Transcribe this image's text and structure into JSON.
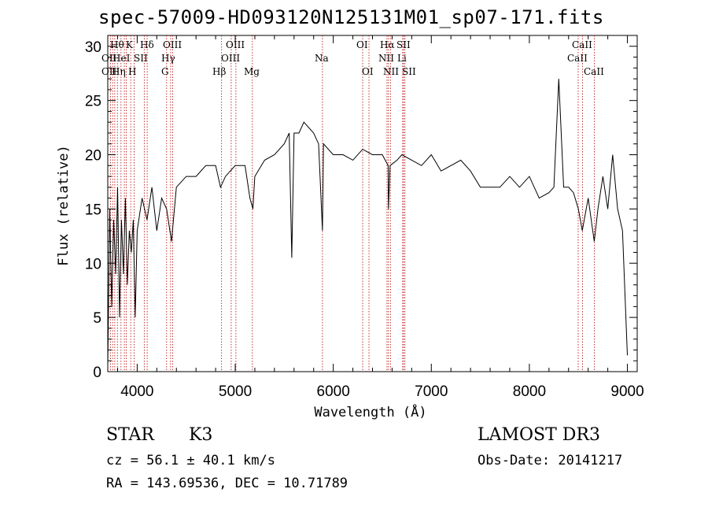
{
  "chart_data": {
    "type": "line",
    "title": "spec-57009-HD093120N125131M01_sp07-171.fits",
    "xlabel": "Wavelength (Å)",
    "ylabel": "Flux (relative)",
    "xlim": [
      3700,
      9100
    ],
    "ylim": [
      0,
      31
    ],
    "xticks": [
      4000,
      5000,
      6000,
      7000,
      8000,
      9000
    ],
    "yticks": [
      0,
      5,
      10,
      15,
      20,
      25,
      30
    ],
    "grid": false,
    "series": [
      {
        "name": "spectrum",
        "x": [
          3700,
          3720,
          3740,
          3760,
          3780,
          3800,
          3820,
          3840,
          3860,
          3880,
          3900,
          3920,
          3940,
          3960,
          3980,
          4000,
          4050,
          4100,
          4150,
          4200,
          4250,
          4300,
          4350,
          4400,
          4500,
          4600,
          4700,
          4800,
          4850,
          4900,
          5000,
          5100,
          5150,
          5180,
          5200,
          5300,
          5400,
          5500,
          5550,
          5577,
          5600,
          5650,
          5700,
          5800,
          5850,
          5890,
          5900,
          6000,
          6100,
          6200,
          6300,
          6400,
          6500,
          6560,
          6563,
          6580,
          6650,
          6700,
          6800,
          6900,
          7000,
          7100,
          7200,
          7300,
          7400,
          7500,
          7600,
          7700,
          7800,
          7900,
          8000,
          8100,
          8200,
          8250,
          8300,
          8350,
          8400,
          8450,
          8500,
          8540,
          8600,
          8662,
          8700,
          8750,
          8800,
          8850,
          8900,
          8950,
          9000
        ],
        "values": [
          0.5,
          15,
          6,
          14,
          9,
          17,
          5,
          14,
          9,
          16,
          8,
          13,
          11,
          14,
          5,
          13,
          16,
          14,
          17,
          13,
          16,
          15,
          12,
          17,
          18,
          18,
          19,
          19,
          17,
          18,
          19,
          19,
          16,
          15,
          18,
          19.5,
          20,
          21,
          22,
          10.5,
          22,
          22,
          23,
          22,
          21,
          13,
          21,
          20,
          20,
          19.5,
          20.5,
          20,
          20,
          19,
          15,
          19,
          19.5,
          20,
          19.5,
          19,
          20,
          18.5,
          19,
          19.5,
          18.5,
          17,
          17,
          17,
          18,
          17,
          18,
          16,
          16.5,
          17,
          27,
          17,
          17,
          16.5,
          15,
          13,
          16,
          12,
          15,
          18,
          15,
          20,
          15,
          13,
          1.5
        ]
      }
    ],
    "spectral_lines": {
      "row1": [
        "Hθ",
        "K",
        "Hδ",
        "OIII",
        "OIII",
        "OI",
        "Hα",
        "SII",
        "CaII"
      ],
      "row2": [
        "OII",
        "HeI",
        "SII",
        "Hγ",
        "OIII",
        "Na",
        "NII",
        "Li",
        "CaII"
      ],
      "row3": [
        "OII",
        "Hη",
        "H",
        "G",
        "Hβ",
        "Mg",
        "OI",
        "NII",
        "SII",
        "CaII"
      ]
    },
    "line_wavelengths": [
      3727,
      3750,
      3771,
      3798,
      3835,
      3869,
      3889,
      3934,
      3969,
      4072,
      4102,
      4300,
      4341,
      4363,
      4861,
      4959,
      5007,
      5175,
      5890,
      6300,
      6364,
      6548,
      6563,
      6583,
      6708,
      6717,
      6731,
      8498,
      8542,
      8662
    ]
  },
  "info": {
    "object_type": "STAR",
    "subclass": "K3",
    "cz": "cz = 56.1 ± 40.1 km/s",
    "survey": "LAMOST DR3",
    "obs_date": "Obs-Date: 20141217",
    "coords": "RA = 143.69536, DEC =  10.71789"
  },
  "colors": {
    "spectrum": "#000000",
    "line_marker": "#b30000",
    "axis": "#000000"
  }
}
